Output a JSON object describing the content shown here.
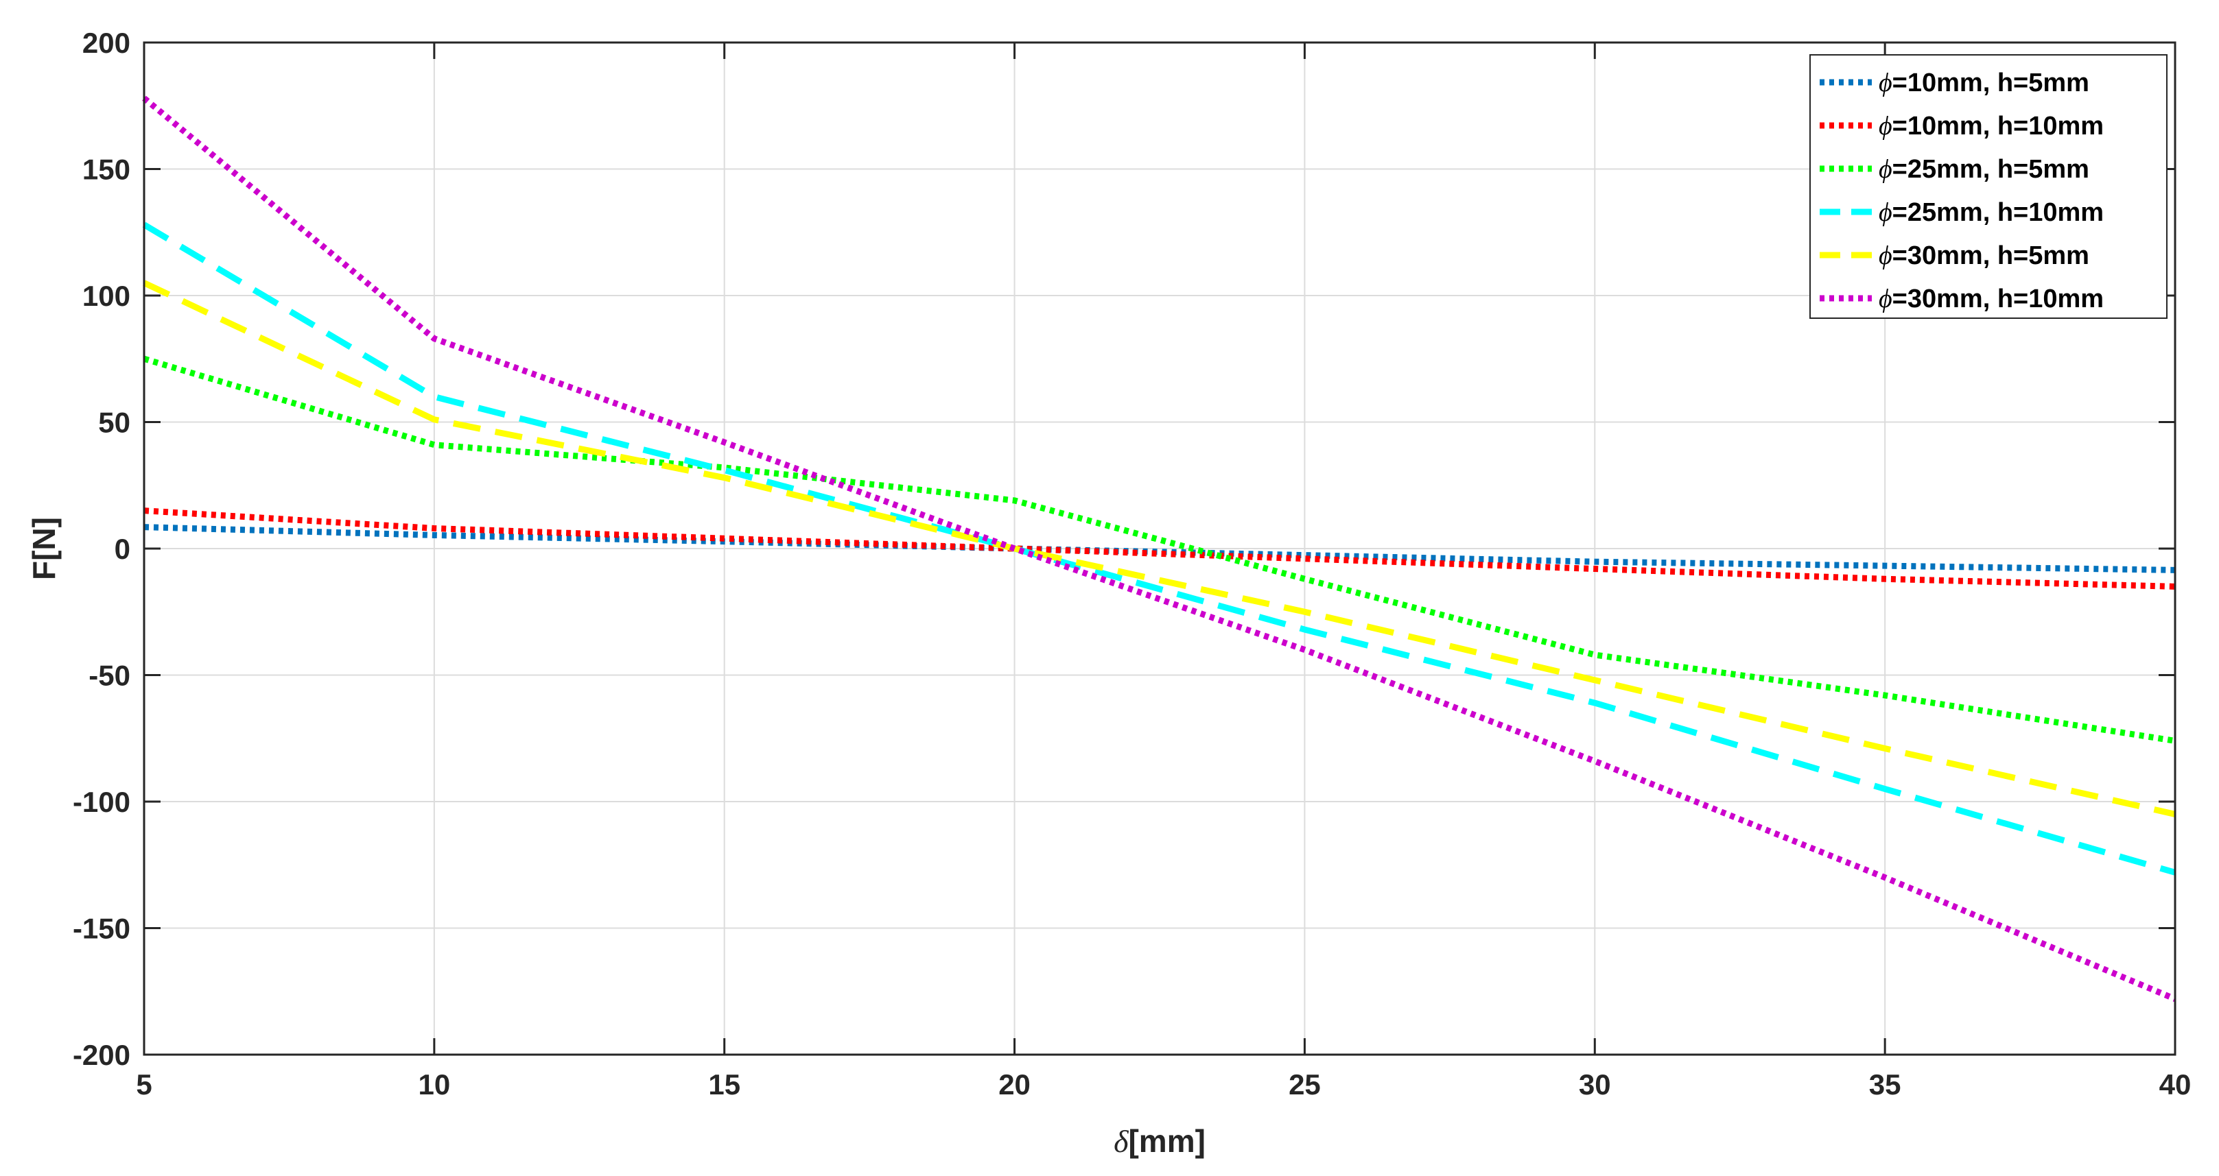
{
  "chart_data": {
    "type": "line",
    "title": "",
    "xlabel": {
      "symbol": "δ",
      "text": "[mm]"
    },
    "ylabel": "F[N]",
    "xlim": [
      5,
      40
    ],
    "ylim": [
      -200,
      200
    ],
    "xticks": [
      5,
      10,
      15,
      20,
      25,
      30,
      35,
      40
    ],
    "yticks": [
      -200,
      -150,
      -100,
      -50,
      0,
      50,
      100,
      150,
      200
    ],
    "grid": true,
    "legend_position": "top-right",
    "x": [
      5,
      10,
      15,
      20,
      25,
      30,
      35,
      40
    ],
    "series": [
      {
        "symbol": "ϕ",
        "label": "=10mm, h=5mm",
        "color": "#0072BD",
        "style": "dotted",
        "values": [
          8.5,
          5.3,
          2.8,
          0,
          -2.6,
          -5.2,
          -6.8,
          -8.5
        ]
      },
      {
        "symbol": "ϕ",
        "label": "=10mm, h=10mm",
        "color": "#FF0000",
        "style": "dotted",
        "values": [
          15,
          8,
          4,
          0,
          -4,
          -8,
          -12,
          -15
        ]
      },
      {
        "symbol": "ϕ",
        "label": "=25mm, h=5mm",
        "color": "#00FF00",
        "style": "dotted",
        "values": [
          75,
          41,
          32,
          19,
          -12,
          -42,
          -58,
          -76
        ]
      },
      {
        "symbol": "ϕ",
        "label": "=25mm, h=10mm",
        "color": "#00FFFF",
        "style": "dashed",
        "values": [
          128,
          60,
          31,
          0,
          -32,
          -61,
          -95,
          -128
        ]
      },
      {
        "symbol": "ϕ",
        "label": "=30mm, h=5mm",
        "color": "#FFFF00",
        "style": "dashed",
        "values": [
          105,
          51,
          28,
          0,
          -25,
          -52,
          -79,
          -105
        ]
      },
      {
        "symbol": "ϕ",
        "label": "=30mm, h=10mm",
        "color": "#CC00CC",
        "style": "dotted",
        "values": [
          178,
          83,
          42,
          0,
          -40,
          -84,
          -130,
          -178
        ]
      }
    ]
  }
}
